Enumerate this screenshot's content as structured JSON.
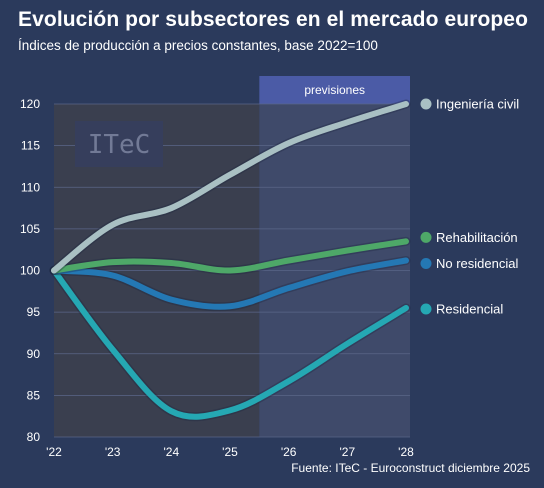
{
  "header": {
    "title": "Evolución por subsectores en el mercado europeo",
    "subtitle": "Índices de producción a precios constantes, base 2022=100"
  },
  "source": "Fuente: ITeC - Euroconstruct diciembre 2025",
  "watermark": "ITeC",
  "colors": {
    "background": "#2b3a5c",
    "historic_band": "#3a3f4f",
    "forecast_band": "#3f4a6a",
    "forecast_header": "#4b5ba6"
  },
  "chart_data": {
    "type": "line",
    "x": [
      "'22",
      "'23",
      "'24",
      "'25",
      "'26",
      "'27",
      "'28"
    ],
    "yticks": [
      80,
      85,
      90,
      95,
      100,
      105,
      110,
      115,
      120
    ],
    "ylim": [
      80,
      120
    ],
    "grid": true,
    "forecast": {
      "label": "previsiones",
      "from": "'25",
      "to": "'28"
    },
    "legend_placement": "line-end-right",
    "series": [
      {
        "name": "Ingeniería civil",
        "color": "#a9c0c3",
        "values": [
          100,
          105.5,
          107.5,
          111.5,
          115.3,
          117.8,
          120
        ]
      },
      {
        "name": "Rehabilitación",
        "color": "#4ea868",
        "values": [
          100,
          101,
          100.9,
          100,
          101.2,
          102.4,
          103.5
        ]
      },
      {
        "name": "No residencial",
        "color": "#2478b4",
        "values": [
          100,
          99.4,
          96.5,
          95.7,
          97.9,
          99.9,
          101.2
        ]
      },
      {
        "name": "Residencial",
        "color": "#25a8b3",
        "values": [
          100,
          90.5,
          83.1,
          83.2,
          86.7,
          91.2,
          95.5
        ]
      }
    ]
  }
}
